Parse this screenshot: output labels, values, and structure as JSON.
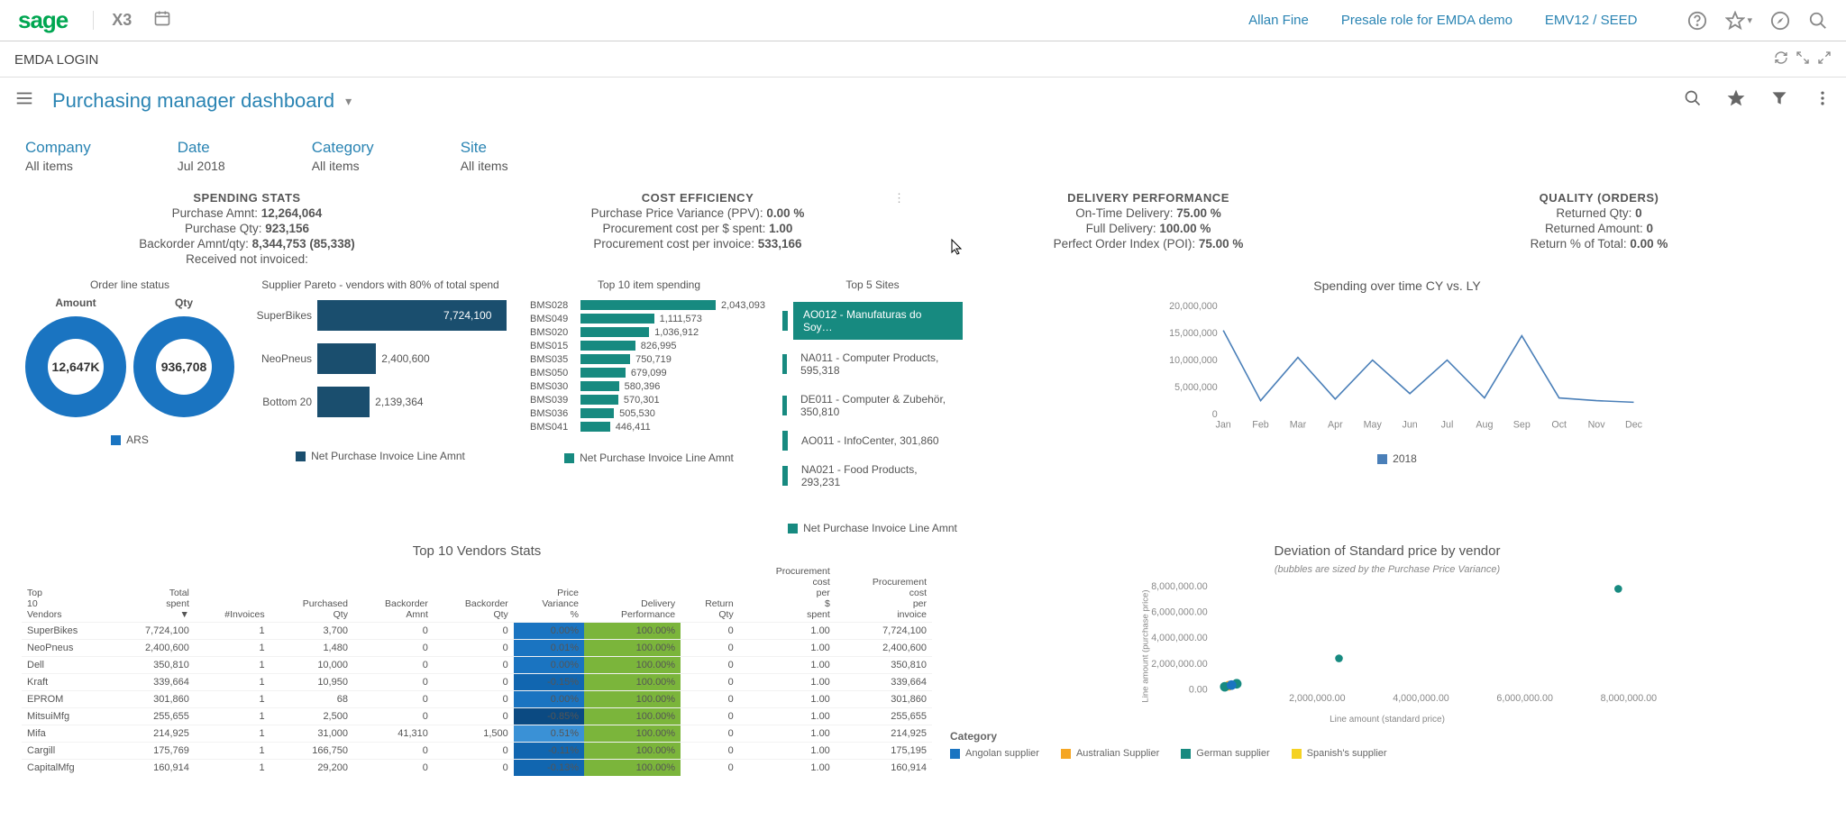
{
  "topbar": {
    "brand": "sage",
    "product": "X3",
    "user": "Allan Fine",
    "role": "Presale role for EMDA demo",
    "env": "EMV12 / SEED"
  },
  "subbar": {
    "title": "EMDA LOGIN"
  },
  "dashboard": {
    "title": "Purchasing manager dashboard"
  },
  "filters": {
    "company": {
      "label": "Company",
      "value": "All items"
    },
    "date": {
      "label": "Date",
      "value": "Jul 2018"
    },
    "category": {
      "label": "Category",
      "value": "All items"
    },
    "site": {
      "label": "Site",
      "value": "All items"
    }
  },
  "stats": {
    "spend": {
      "head": "SPENDING STATS",
      "l1_label": "Purchase Amnt:",
      "l1_val": "12,264,064",
      "l2_label": "Purchase Qty:",
      "l2_val": "923,156",
      "l3_label": "Backorder Amnt/qty:",
      "l3_val": "8,344,753 (85,338)",
      "l4_label": "Received not invoiced:",
      "l4_val": ""
    },
    "cost": {
      "head": "COST EFFICIENCY",
      "l1_label": "Purchase Price Variance (PPV):",
      "l1_val": "0.00 %",
      "l2_label": "Procurement cost per $ spent:",
      "l2_val": "1.00",
      "l3_label": "Procurement cost per invoice:",
      "l3_val": "533,166"
    },
    "deliv": {
      "head": "DELIVERY PERFORMANCE",
      "l1_label": "On-Time Delivery:",
      "l1_val": "75.00 %",
      "l2_label": "Full Delivery:",
      "l2_val": "100.00 %",
      "l3_label": "Perfect Order Index (POI):",
      "l3_val": "75.00 %"
    },
    "quality": {
      "head": "QUALITY (ORDERS)",
      "l1_label": "Returned Qty:",
      "l1_val": "0",
      "l2_label": "Returned Amount:",
      "l2_val": "0",
      "l3_label": "Return % of Total:",
      "l3_val": "0.00 %"
    }
  },
  "donuts": {
    "title": "Order line status",
    "amount": {
      "head": "Amount",
      "label": "12,647K"
    },
    "qty": {
      "head": "Qty",
      "label": "936,708"
    },
    "legend": "ARS",
    "color": "#1a74c1"
  },
  "pareto": {
    "title": "Supplier Pareto - vendors with 80% of total spend",
    "legend": "Net Purchase Invoice Line Amnt",
    "legend_color": "#1a4e6e",
    "max": 7724100,
    "rows": [
      {
        "label": "SuperBikes",
        "value": 7724100,
        "text": "7,724,100",
        "inside": true
      },
      {
        "label": "NeoPneus",
        "value": 2400600,
        "text": "2,400,600",
        "inside": false
      },
      {
        "label": "Bottom 20",
        "value": 2139364,
        "text": "2,139,364",
        "inside": false
      }
    ]
  },
  "itemspend": {
    "title": "Top 10 item spending",
    "legend": "Net Purchase Invoice Line Amnt",
    "legend_color": "#178a80",
    "max": 2043093,
    "rows": [
      {
        "label": "BMS028",
        "value": 2043093,
        "text": "2,043,093"
      },
      {
        "label": "BMS049",
        "value": 1111573,
        "text": "1,111,573"
      },
      {
        "label": "BMS020",
        "value": 1036912,
        "text": "1,036,912"
      },
      {
        "label": "BMS015",
        "value": 826995,
        "text": "826,995"
      },
      {
        "label": "BMS035",
        "value": 750719,
        "text": "750,719"
      },
      {
        "label": "BMS050",
        "value": 679099,
        "text": "679,099"
      },
      {
        "label": "BMS030",
        "value": 580396,
        "text": "580,396"
      },
      {
        "label": "BMS039",
        "value": 570301,
        "text": "570,301"
      },
      {
        "label": "BMS036",
        "value": 505530,
        "text": "505,530"
      },
      {
        "label": "BMS041",
        "value": 446411,
        "text": "446,411"
      }
    ]
  },
  "sites": {
    "title": "Top 5 Sites",
    "legend": "Net Purchase Invoice Line Amnt",
    "legend_color": "#178a80",
    "rows": [
      {
        "label": "AO012 - Manufaturas do Soy…",
        "active": true
      },
      {
        "label": "NA011 - Computer Products, 595,318",
        "active": false
      },
      {
        "label": "DE011 - Computer & Zubehör, 350,810",
        "active": false
      },
      {
        "label": "AO011 - InfoCenter, 301,860",
        "active": false
      },
      {
        "label": "NA021 - Food Products, 293,231",
        "active": false
      }
    ]
  },
  "trend": {
    "title": "Spending over time CY vs. LY",
    "legend": "2018",
    "color": "#4a7fb8",
    "yticks": [
      "20,000,000",
      "15,000,000",
      "10,000,000",
      "5,000,000",
      "0"
    ],
    "xlabels": [
      "Jan",
      "Feb",
      "Mar",
      "Apr",
      "May",
      "Jun",
      "Jul",
      "Aug",
      "Sep",
      "Oct",
      "Nov",
      "Dec"
    ],
    "yvals": [
      15.5,
      2.5,
      10.5,
      2.8,
      10.0,
      3.8,
      10.0,
      3.0,
      14.5,
      3.0,
      2.5,
      2.2
    ]
  },
  "vendortable": {
    "title": "Top 10 Vendors Stats",
    "headers": [
      "Top 10 Vendors",
      "Total spent ▼",
      "#Invoices",
      "Purchased Qty",
      "Backorder Amnt",
      "Backorder Qty",
      "Price Variance %",
      "Delivery Performance",
      "Return Qty",
      "Procurement cost per $ spent",
      "Procurement cost per invoice"
    ],
    "rows": [
      {
        "c": [
          "SuperBikes",
          "7,724,100",
          "1",
          "3,700",
          "0",
          "0",
          "0.00%",
          "100.00%",
          "0",
          "1.00",
          "7,724,100"
        ],
        "pvcol": "#1a74c1",
        "dpcol": "#7bb53b"
      },
      {
        "c": [
          "NeoPneus",
          "2,400,600",
          "1",
          "1,480",
          "0",
          "0",
          "0.01%",
          "100.00%",
          "0",
          "1.00",
          "2,400,600"
        ],
        "pvcol": "#1a74c1",
        "dpcol": "#7bb53b"
      },
      {
        "c": [
          "Dell",
          "350,810",
          "1",
          "10,000",
          "0",
          "0",
          "0.00%",
          "100.00%",
          "0",
          "1.00",
          "350,810"
        ],
        "pvcol": "#1a74c1",
        "dpcol": "#7bb53b"
      },
      {
        "c": [
          "Kraft",
          "339,664",
          "1",
          "10,950",
          "0",
          "0",
          "-0.15%",
          "100.00%",
          "0",
          "1.00",
          "339,664"
        ],
        "pvcol": "#1166b0",
        "dpcol": "#7bb53b"
      },
      {
        "c": [
          "EPROM",
          "301,860",
          "1",
          "68",
          "0",
          "0",
          "0.00%",
          "100.00%",
          "0",
          "1.00",
          "301,860"
        ],
        "pvcol": "#1a74c1",
        "dpcol": "#7bb53b"
      },
      {
        "c": [
          "MitsuiMfg",
          "255,655",
          "1",
          "2,500",
          "0",
          "0",
          "-0.85%",
          "100.00%",
          "0",
          "1.00",
          "255,655"
        ],
        "pvcol": "#0b4a82",
        "dpcol": "#7bb53b"
      },
      {
        "c": [
          "Mifa",
          "214,925",
          "1",
          "31,000",
          "41,310",
          "1,500",
          "0.51%",
          "100.00%",
          "0",
          "1.00",
          "214,925"
        ],
        "pvcol": "#3a91d6",
        "dpcol": "#7bb53b"
      },
      {
        "c": [
          "Cargill",
          "175,769",
          "1",
          "166,750",
          "0",
          "0",
          "-0.11%",
          "100.00%",
          "0",
          "1.00",
          "175,195"
        ],
        "pvcol": "#1166b0",
        "dpcol": "#7bb53b"
      },
      {
        "c": [
          "CapitalMfg",
          "160,914",
          "1",
          "29,200",
          "0",
          "0",
          "-0.13%",
          "100.00%",
          "0",
          "1.00",
          "160,914"
        ],
        "pvcol": "#1166b0",
        "dpcol": "#7bb53b"
      }
    ]
  },
  "scatter": {
    "title": "Deviation of Standard price by vendor",
    "subtitle": "(bubbles are sized by the Purchase Price Variance)",
    "yticks": [
      "8,000,000.00",
      "6,000,000.00",
      "4,000,000.00",
      "2,000,000.00",
      "0.00"
    ],
    "xticks": [
      "2,000,000.00",
      "4,000,000.00",
      "6,000,000.00",
      "8,000,000.00"
    ],
    "ylabel": "Line amount (purchase price)",
    "xlabel": "Line amount (standard price)",
    "points": [
      {
        "x": 7.8,
        "y": 7.8,
        "r": 4,
        "color": "#178a80"
      },
      {
        "x": 2.42,
        "y": 2.42,
        "r": 4,
        "color": "#178a80"
      },
      {
        "x": 0.45,
        "y": 0.45,
        "r": 5,
        "color": "#178a80"
      },
      {
        "x": 0.3,
        "y": 0.3,
        "r": 5,
        "color": "#f5a623"
      },
      {
        "x": 0.22,
        "y": 0.22,
        "r": 5,
        "color": "#178a80"
      },
      {
        "x": 0.35,
        "y": 0.35,
        "r": 5,
        "color": "#1a74c1"
      }
    ],
    "categories": {
      "label": "Category",
      "items": [
        {
          "label": "Angolan supplier",
          "color": "#1a74c1"
        },
        {
          "label": "Australian Supplier",
          "color": "#f5a623"
        },
        {
          "label": "German supplier",
          "color": "#178a80"
        },
        {
          "label": "Spanish's supplier",
          "color": "#f5d223"
        }
      ]
    }
  }
}
